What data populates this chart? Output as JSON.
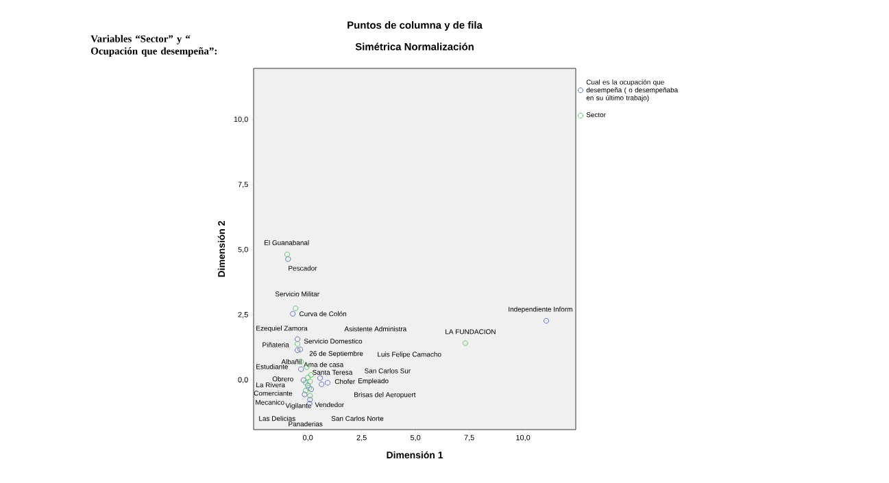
{
  "chart_data": {
    "type": "scatter",
    "title": "Puntos de columna y de fila",
    "subtitle": "Simétrica Normalización",
    "xlabel": "Dimensión 1",
    "ylabel": "Dimensión 2",
    "xlim": [
      -2.52,
      12.45
    ],
    "ylim": [
      -1.9,
      11.97
    ],
    "xticks": [
      {
        "value": 0,
        "label": "0,0"
      },
      {
        "value": 2.5,
        "label": "2,5"
      },
      {
        "value": 5,
        "label": "5,0"
      },
      {
        "value": 7.5,
        "label": "7,5"
      },
      {
        "value": 10,
        "label": "10,0"
      }
    ],
    "yticks": [
      {
        "value": 0,
        "label": "0,0"
      },
      {
        "value": 2.5,
        "label": "2,5"
      },
      {
        "value": 5,
        "label": "5,0"
      },
      {
        "value": 7.5,
        "label": "7,5"
      },
      {
        "value": 10,
        "label": "10,0"
      }
    ],
    "marker": "circle",
    "legend": "top right",
    "grid": false,
    "series": [
      {
        "name": "Cual es la ocupación que desempeña ( o desempeñaba en su último trabajo)",
        "color": "#5166c2",
        "x": [
          -0.92,
          -0.7,
          -0.48,
          -0.48,
          -0.35,
          -0.32,
          -0.2,
          0.0,
          0.15,
          -0.15,
          0.1,
          0.08,
          0.57,
          0.64,
          0.92,
          11.08
        ],
        "values": [
          4.65,
          2.55,
          1.57,
          1.15,
          1.18,
          0.42,
          0.0,
          -0.2,
          -0.35,
          -0.55,
          -0.75,
          -0.9,
          0.08,
          -0.16,
          -0.1,
          2.28
        ]
      },
      {
        "name": "Sector",
        "color": "#4cc35a",
        "x": [
          -0.96,
          -0.57,
          -0.48,
          -0.32,
          -0.05,
          0.0,
          -0.1,
          0.1,
          0.05,
          -0.1,
          0.1,
          0.15,
          7.32
        ],
        "values": [
          4.83,
          2.76,
          1.39,
          0.71,
          0.5,
          0.1,
          -0.1,
          -0.05,
          -0.3,
          -0.4,
          -0.6,
          0.2,
          1.42
        ]
      }
    ],
    "annotations": [
      "Variables “Sector” y “ Ocupación que desempeña”:",
      "El Guanabanal",
      "Pescador",
      "Servicio Militar",
      "Curva de Colón",
      "Ezequiel Zamora",
      "Asistente Administra",
      "LA FUNDACION",
      "Independiente Inform",
      "Servicio Domestico",
      "Piñateria",
      "26 de Septiembre",
      "Luis Felipe Camacho",
      "Albañil",
      "Estudiante",
      "Ama de casa",
      "Santa Teresa",
      "San Carlos Sur",
      "Obrero",
      "Chofer",
      "Empleado",
      "La Rivera",
      "Comerciante",
      "Brisas del Aeropuert",
      "Mecanico",
      "Vigilante",
      "Vendedor",
      "Las Delicias",
      "Panaderias",
      "San Carlos Norte"
    ]
  }
}
